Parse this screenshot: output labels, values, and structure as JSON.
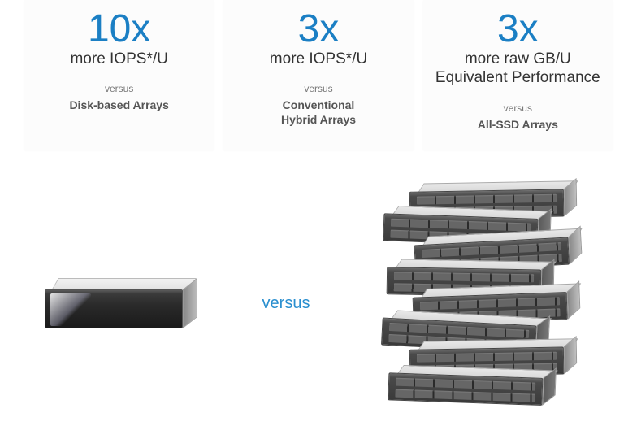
{
  "colors": {
    "accent": "#1b7fc4",
    "text_dark": "#333333",
    "text_muted": "#777777",
    "text_bold_gray": "#555555",
    "background": "#ffffff",
    "card_bg": "#fcfcfc"
  },
  "typography": {
    "stat_number_size": 48,
    "metric_size": 19,
    "versus_small_size": 12,
    "comparison_size": 14,
    "versus_center_size": 20
  },
  "cards": [
    {
      "stat": "10x",
      "metric": "more IOPS*/U",
      "versus_label": "versus",
      "comparison": "Disk-based Arrays"
    },
    {
      "stat": "3x",
      "metric": "more IOPS*/U",
      "versus_label": "versus",
      "comparison": "Conventional\nHybrid Arrays"
    },
    {
      "stat": "3x",
      "metric": "more raw GB/U\nEquivalent Performance",
      "versus_label": "versus",
      "comparison": "All-SSD Arrays"
    }
  ],
  "bottom": {
    "versus_label": "versus",
    "left_device_name": "single-storage-array",
    "right_device_name": "stacked-storage-arrays",
    "stack_count": 8
  }
}
